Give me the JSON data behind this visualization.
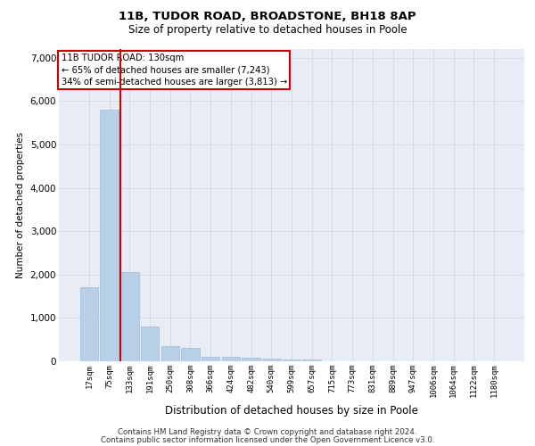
{
  "title1": "11B, TUDOR ROAD, BROADSTONE, BH18 8AP",
  "title2": "Size of property relative to detached houses in Poole",
  "xlabel": "Distribution of detached houses by size in Poole",
  "ylabel": "Number of detached properties",
  "categories": [
    "17sqm",
    "75sqm",
    "133sqm",
    "191sqm",
    "250sqm",
    "308sqm",
    "366sqm",
    "424sqm",
    "482sqm",
    "540sqm",
    "599sqm",
    "657sqm",
    "715sqm",
    "773sqm",
    "831sqm",
    "889sqm",
    "947sqm",
    "1006sqm",
    "1064sqm",
    "1122sqm",
    "1180sqm"
  ],
  "values": [
    1700,
    5800,
    2050,
    800,
    350,
    310,
    100,
    110,
    75,
    55,
    50,
    50,
    0,
    0,
    0,
    0,
    0,
    0,
    0,
    0,
    0
  ],
  "bar_color": "#b8cfe8",
  "bar_edge_color": "#a0bbda",
  "property_line_color": "#cc0000",
  "annotation_title": "11B TUDOR ROAD: 130sqm",
  "annotation_line1": "← 65% of detached houses are smaller (7,243)",
  "annotation_line2": "34% of semi-detached houses are larger (3,813) →",
  "annotation_box_color": "#ffffff",
  "annotation_box_edge": "#cc0000",
  "grid_color": "#d4dcea",
  "bg_color": "#e8edf5",
  "ylim": [
    0,
    7200
  ],
  "yticks": [
    0,
    1000,
    2000,
    3000,
    4000,
    5000,
    6000,
    7000
  ],
  "footer1": "Contains HM Land Registry data © Crown copyright and database right 2024.",
  "footer2": "Contains public sector information licensed under the Open Government Licence v3.0."
}
